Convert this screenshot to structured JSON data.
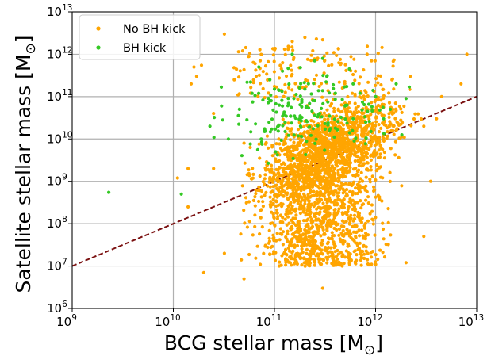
{
  "chart_data": {
    "type": "scatter",
    "xlabel": "BCG stellar mass [M",
    "ylabel": "Satellite stellar mass [M",
    "label_subscript": "⊙",
    "label_close": "]",
    "x_scale": "log",
    "y_scale": "log",
    "xlim": [
      1000000000.0,
      10000000000000.0
    ],
    "ylim": [
      1000000.0,
      10000000000000.0
    ],
    "grid": true,
    "legend_location": "upper-left",
    "x_ticks": [
      {
        "base": "10",
        "exp": "9"
      },
      {
        "base": "10",
        "exp": "10"
      },
      {
        "base": "10",
        "exp": "11"
      },
      {
        "base": "10",
        "exp": "12"
      },
      {
        "base": "10",
        "exp": "13"
      }
    ],
    "y_ticks": [
      {
        "base": "10",
        "exp": "6"
      },
      {
        "base": "10",
        "exp": "7"
      },
      {
        "base": "10",
        "exp": "8"
      },
      {
        "base": "10",
        "exp": "9"
      },
      {
        "base": "10",
        "exp": "10"
      },
      {
        "base": "10",
        "exp": "11"
      },
      {
        "base": "10",
        "exp": "12"
      },
      {
        "base": "10",
        "exp": "13"
      }
    ],
    "reference_line": {
      "style": "dashed",
      "color": "#7b1111",
      "x": [
        1000000000.0,
        10000000000000.0
      ],
      "y": [
        10000000.0,
        100000000000.0
      ]
    },
    "series": [
      {
        "name": "No BH kick",
        "color": "#ffa500",
        "points": [
          [
            200000000000.0,
            2500000000000.0
          ],
          [
            300000000000.0,
            2200000000000.0
          ],
          [
            150000000000.0,
            2000000000000.0
          ],
          [
            260000000000.0,
            2300000000000.0
          ],
          [
            32000000000.0,
            3000000000000.0
          ],
          [
            16000000000.0,
            500000000000.0
          ],
          [
            19000000000.0,
            550000000000.0
          ],
          [
            17000000000.0,
            300000000000.0
          ],
          [
            15000000000.0,
            200000000000.0
          ],
          [
            40000000000.0,
            250000000000.0
          ],
          [
            7000000000000.0,
            200000000000.0
          ],
          [
            4500000000000.0,
            100000000000.0
          ],
          [
            3000000000000.0,
            20000000000.0
          ],
          [
            8000000000000.0,
            1000000000000.0
          ],
          [
            11000000000.0,
            1200000000.0
          ],
          [
            14000000000.0,
            250000000.0
          ],
          [
            20000000000.0,
            7000000.0
          ],
          [
            3500000000000.0,
            1000000000.0
          ],
          [
            3000000000000.0,
            50000000.0
          ],
          [
            32000000000.0,
            20000000.0
          ],
          [
            2000000000000.0,
            12000000.0
          ],
          [
            50000000000.0,
            5000000.0
          ],
          [
            300000000000.0,
            3000000.0
          ],
          [
            25000000000.0,
            2000000000.0
          ],
          [
            4000000000000.0,
            30000000000.0
          ],
          [
            2200000000000.0,
            300000000000.0
          ],
          [
            14000000000.0,
            2000000000.0
          ],
          [
            25000000000.0,
            40000000000.0
          ],
          [
            50000000000.0,
            8000000000.0
          ]
        ]
      },
      {
        "name": "BH kick",
        "color": "#34c924",
        "points": [
          [
            2300000000.0,
            550000000.0
          ],
          [
            12000000000.0,
            500000000.0
          ],
          [
            30000000000.0,
            60000000000.0
          ],
          [
            23000000000.0,
            20000000000.0
          ],
          [
            35000000000.0,
            10000000000.0
          ],
          [
            250000000000.0,
            700000000000.0
          ],
          [
            300000000000.0,
            800000000000.0
          ],
          [
            120000000000.0,
            400000000000.0
          ],
          [
            200000000000.0,
            150000000000.0
          ],
          [
            600000000000.0,
            30000000000.0
          ],
          [
            800000000000.0,
            25000000000.0
          ],
          [
            900000000000.0,
            15000000000.0
          ],
          [
            1400000000000.0,
            50000000000.0
          ],
          [
            1000000000000.0,
            100000000000.0
          ],
          [
            70000000000.0,
            500000000000.0
          ],
          [
            500000000000.0,
            60000000000.0
          ],
          [
            1200000000000.0,
            30000000000.0
          ],
          [
            1600000000000.0,
            200000000000.0
          ],
          [
            400000000000.0,
            120000000000.0
          ],
          [
            330000000000.0,
            300000000000.0
          ],
          [
            90000000000.0,
            250000000000.0
          ],
          [
            120000000000.0,
            60000000000.0
          ],
          [
            180000000000.0,
            35000000000.0
          ],
          [
            240000000000.0,
            80000000000.0
          ],
          [
            60000000000.0,
            120000000000.0
          ],
          [
            400000000000.0,
            18000000000.0
          ],
          [
            700000000000.0,
            120000000000.0
          ],
          [
            2000000000000.0,
            90000000000.0
          ],
          [
            600000000000.0,
            200000000000.0
          ],
          [
            150000000000.0,
            1000000000000.0
          ],
          [
            100000000000.0,
            150000000000.0
          ],
          [
            45000000000.0,
            50000000000.0
          ],
          [
            80000000000.0,
            15000000000.0
          ],
          [
            550000000000.0,
            450000000000.0
          ]
        ]
      }
    ]
  }
}
